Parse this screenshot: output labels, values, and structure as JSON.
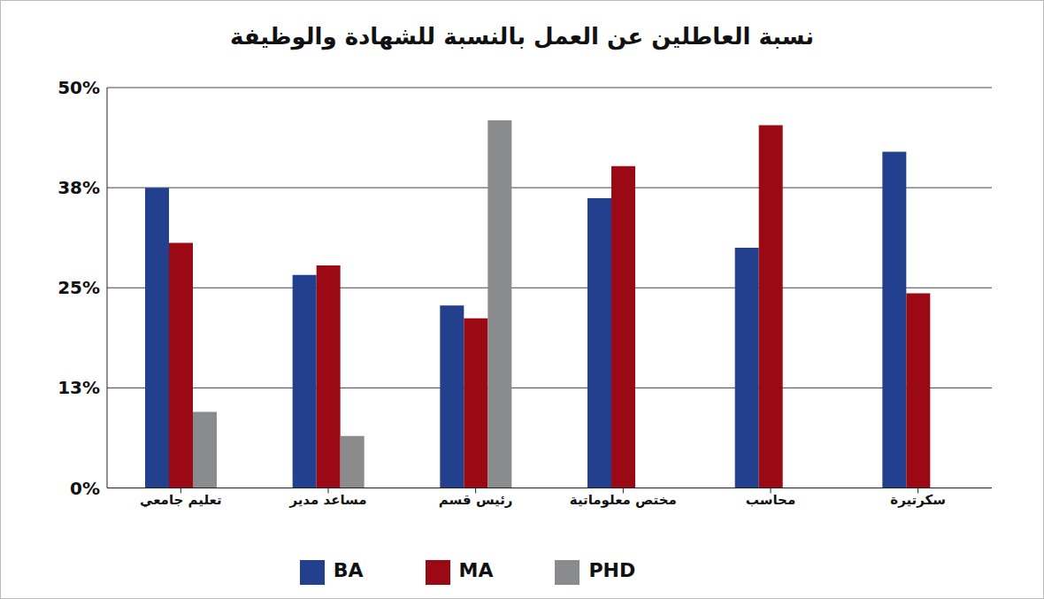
{
  "chart_data": {
    "type": "bar",
    "title": "نسبة العاطلين عن العمل بالنسبة للشهادة والوظيفة",
    "categories": [
      "تعليم جامعي",
      "مساعد مدير",
      "رئيس قسم",
      "مختص معلوماتية",
      "محاسب",
      "سكرتيرة"
    ],
    "series": [
      {
        "name": "BA",
        "color": "#23408e",
        "values": [
          37.5,
          26.6,
          22.8,
          36.2,
          30.0,
          42.0
        ]
      },
      {
        "name": "MA",
        "color": "#9b0a14",
        "values": [
          30.6,
          27.8,
          21.2,
          40.2,
          45.3,
          24.3
        ]
      },
      {
        "name": "PHD",
        "color": "#8a8b8d",
        "values": [
          9.5,
          6.5,
          45.9,
          null,
          null,
          null
        ]
      }
    ],
    "ylim": [
      0,
      50
    ],
    "yticks": [
      {
        "value": 0,
        "label": "0%"
      },
      {
        "value": 12.5,
        "label": "13%"
      },
      {
        "value": 25,
        "label": "25%"
      },
      {
        "value": 37.5,
        "label": "38%"
      },
      {
        "value": 50,
        "label": "50%"
      }
    ],
    "grid": true,
    "legend": "bottom"
  }
}
